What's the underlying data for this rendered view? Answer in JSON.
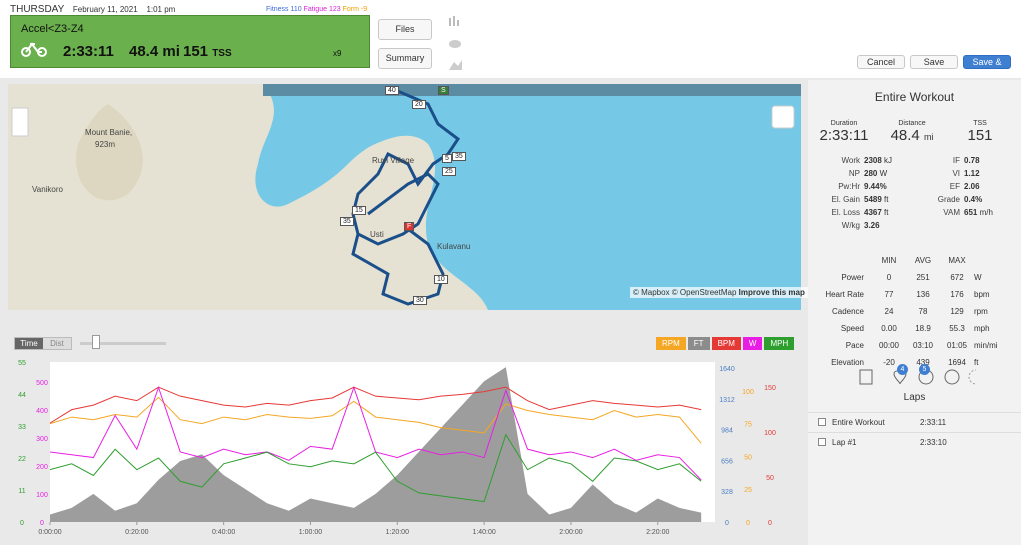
{
  "header": {
    "day": "THURSDAY",
    "date": "February 11, 2021",
    "time": "1:01 pm",
    "fitness_label": "Fitness",
    "fitness": "110",
    "fatigue_label": "Fatigue",
    "fatigue": "123",
    "form_label": "Form",
    "form": "-9"
  },
  "workout": {
    "title": "Accel<Z3-Z4",
    "duration": "2:33:11",
    "distance": "48.4",
    "distance_unit": "mi",
    "tss": "151",
    "tss_unit": "TSS",
    "count": "x9"
  },
  "buttons": {
    "files": "Files",
    "summary": "Summary",
    "cancel": "Cancel",
    "save": "Save",
    "save_close": "Save & Close"
  },
  "map": {
    "places": [
      "Mount Banie,",
      "923m",
      "Vanikoro",
      "Ruvi Village",
      "Usti",
      "Kulavanu"
    ],
    "markers": [
      "40",
      "S",
      "20",
      "5",
      "35",
      "25",
      "15",
      "35",
      "F",
      "10",
      "30"
    ],
    "attribution": "© Mapbox © OpenStreetMap",
    "improve": "Improve this map"
  },
  "panel": {
    "title": "Entire Workout",
    "summary": [
      {
        "label": "Duration",
        "value": "2:33:11",
        "unit": ""
      },
      {
        "label": "Distance",
        "value": "48.4",
        "unit": "mi"
      },
      {
        "label": "TSS",
        "value": "151",
        "unit": ""
      }
    ],
    "metrics_left": [
      [
        "Work",
        "2308",
        "kJ"
      ],
      [
        "NP",
        "280",
        "W"
      ],
      [
        "Pw:Hr",
        "9.44%",
        ""
      ],
      [
        "El. Gain",
        "5489",
        "ft"
      ],
      [
        "El. Loss",
        "4367",
        "ft"
      ],
      [
        "W/kg",
        "3.26",
        ""
      ]
    ],
    "metrics_right": [
      [
        "IF",
        "0.78",
        ""
      ],
      [
        "VI",
        "1.12",
        ""
      ],
      [
        "EF",
        "2.06",
        ""
      ],
      [
        "Grade",
        "0.4%",
        ""
      ],
      [
        "VAM",
        "651",
        "m/h"
      ]
    ],
    "table_header": [
      "MIN",
      "AVG",
      "MAX"
    ],
    "table_rows": [
      [
        "Power",
        "0",
        "251",
        "672",
        "W"
      ],
      [
        "Heart Rate",
        "77",
        "136",
        "176",
        "bpm"
      ],
      [
        "Cadence",
        "24",
        "78",
        "129",
        "rpm"
      ],
      [
        "Speed",
        "0.00",
        "18.9",
        "55.3",
        "mph"
      ],
      [
        "Pace",
        "00:00",
        "03:10",
        "01:05",
        "min/mi"
      ],
      [
        "Elevation",
        "-20",
        "439",
        "1694",
        "ft"
      ]
    ],
    "badges": [
      "4",
      "5"
    ],
    "laps_title": "Laps",
    "laps": [
      [
        "Entire Workout",
        "2:33:11"
      ],
      [
        "Lap #1",
        "2:33:10"
      ]
    ]
  },
  "chart_data": {
    "type": "line",
    "toggles": [
      "Time",
      "Dist"
    ],
    "x": [
      0,
      300,
      600,
      900,
      1200,
      1500,
      1800,
      2100,
      2400,
      2700,
      3000,
      3300,
      3600,
      3900,
      4200,
      4500,
      4800,
      5100,
      5400,
      5700,
      6000,
      6300,
      6600,
      6900,
      7200,
      7500,
      7800,
      8100,
      8400,
      8700,
      9000
    ],
    "xlim": [
      0,
      9191
    ],
    "xticks": [
      {
        "value": 0,
        "label": "0:00:00"
      },
      {
        "value": 1200,
        "label": "0:20:00"
      },
      {
        "value": 2400,
        "label": "0:40:00"
      },
      {
        "value": 3600,
        "label": "1:00:00"
      },
      {
        "value": 4800,
        "label": "1:20:00"
      },
      {
        "value": 6000,
        "label": "1:40:00"
      },
      {
        "value": 7200,
        "label": "2:00:00"
      },
      {
        "value": 8400,
        "label": "2:20:00"
      }
    ],
    "series": [
      {
        "name": "FT",
        "color": "#8c8c8c",
        "tick_color": "#4a7fc1",
        "area": true,
        "side": "right",
        "ylim": [
          0,
          1705
        ],
        "yticks": [
          0,
          328,
          656,
          984,
          1312,
          1640
        ],
        "values": [
          80,
          150,
          300,
          120,
          200,
          450,
          650,
          720,
          500,
          350,
          200,
          120,
          250,
          200,
          150,
          300,
          500,
          750,
          1000,
          1250,
          1500,
          1650,
          300,
          80,
          150,
          400,
          200,
          100,
          250,
          150,
          100
        ]
      },
      {
        "name": "RPM",
        "color": "#f5a623",
        "tick_color": "#f5a623",
        "side": "right",
        "ylim": [
          0,
          122
        ],
        "yticks": [
          0,
          25,
          50,
          75,
          100
        ],
        "values": [
          75,
          80,
          78,
          82,
          80,
          95,
          78,
          75,
          80,
          78,
          82,
          80,
          79,
          81,
          92,
          80,
          78,
          76,
          72,
          70,
          68,
          90,
          85,
          82,
          80,
          78,
          85,
          80,
          82,
          80,
          60
        ]
      },
      {
        "name": "BPM",
        "color": "#e53935",
        "tick_color": "#e53935",
        "side": "right",
        "ylim": [
          0,
          178
        ],
        "yticks": [
          0,
          50,
          100,
          150
        ],
        "values": [
          110,
          125,
          130,
          140,
          135,
          150,
          140,
          135,
          130,
          128,
          132,
          130,
          135,
          138,
          150,
          140,
          138,
          136,
          140,
          142,
          145,
          150,
          135,
          125,
          130,
          135,
          132,
          130,
          128,
          130,
          125
        ]
      },
      {
        "name": "W",
        "color": "#e91ee5",
        "tick_color": "#e91ee5",
        "side": "left",
        "ylim": [
          0,
          571
        ],
        "yticks": [
          0,
          100,
          200,
          300,
          400,
          500
        ],
        "values": [
          250,
          240,
          230,
          380,
          260,
          480,
          250,
          230,
          260,
          240,
          250,
          220,
          270,
          260,
          480,
          250,
          230,
          260,
          240,
          250,
          230,
          470,
          260,
          240,
          250,
          230,
          260,
          220,
          240,
          230,
          150
        ]
      },
      {
        "name": "MPH",
        "color": "#2e9e2e",
        "tick_color": "#2e9e2e",
        "side": "left",
        "ylim": [
          0,
          55
        ],
        "yticks": [
          0,
          11,
          22,
          33,
          44,
          55
        ],
        "values": [
          18,
          20,
          16,
          25,
          18,
          22,
          14,
          12,
          20,
          22,
          24,
          20,
          19,
          21,
          20,
          24,
          14,
          10,
          9,
          8,
          7,
          30,
          18,
          22,
          20,
          14,
          22,
          21,
          18,
          20,
          14
        ]
      }
    ]
  }
}
